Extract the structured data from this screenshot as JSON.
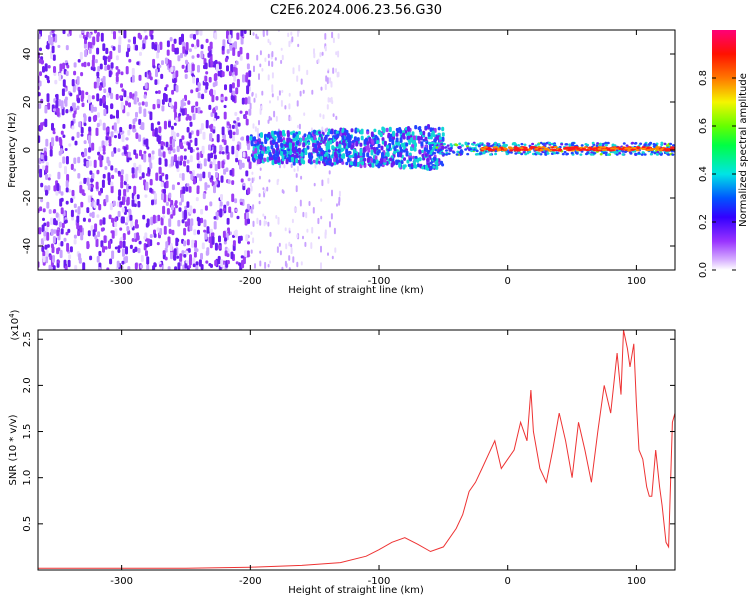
{
  "title": "C2E6.2024.006.23.56.G30",
  "chart_data": [
    {
      "type": "heatmap",
      "xlabel": "Height of straight line (km)",
      "ylabel": "Frequency (Hz)",
      "xlim": [
        -365,
        130
      ],
      "ylim": [
        -50,
        50
      ],
      "xticks": [
        "-300",
        "-200",
        "-100",
        "0",
        "100"
      ],
      "yticks": [
        "40",
        "20",
        "0",
        "-20",
        "-40"
      ],
      "colorbar": {
        "label": "Normalized spectral amplitude",
        "range": [
          0.0,
          1.0
        ],
        "ticks": [
          "0.0",
          "0.2",
          "0.4",
          "0.6",
          "0.8"
        ]
      },
      "regions": [
        {
          "x_from": -365,
          "x_to": -200,
          "description": "broadband noise, amplitude ~0.1-0.3, all frequencies"
        },
        {
          "x_from": -200,
          "x_to": -130,
          "description": "sparse noise, amplitude ~0.05-0.15"
        },
        {
          "x_from": -200,
          "x_to": -50,
          "description": "band centred near 0 Hz, width ~±10 Hz, amplitude ~0.2-0.5"
        },
        {
          "x_from": -50,
          "x_to": 130,
          "description": "narrow band at 0 Hz, amplitude ~0.6-1.0"
        }
      ]
    },
    {
      "type": "line",
      "xlabel": "Height of straight line (km)",
      "ylabel": "SNR (10 * v/v)",
      "ymultiplier": "(x10",
      "ymultiplier_exp": "4",
      "ymultiplier_close": ")",
      "xlim": [
        -365,
        130
      ],
      "ylim": [
        0,
        2.6
      ],
      "xticks": [
        "-300",
        "-200",
        "-100",
        "0",
        "100"
      ],
      "yticks": [
        "0.5",
        "1.0",
        "1.5",
        "2.0",
        "2.5"
      ],
      "series": [
        {
          "color": "#ee3333",
          "x": [
            -365,
            -300,
            -250,
            -200,
            -160,
            -130,
            -110,
            -100,
            -90,
            -80,
            -70,
            -60,
            -50,
            -40,
            -35,
            -30,
            -25,
            -20,
            -15,
            -10,
            -5,
            0,
            5,
            10,
            15,
            18,
            20,
            25,
            30,
            35,
            40,
            45,
            50,
            55,
            60,
            65,
            70,
            75,
            80,
            85,
            88,
            90,
            93,
            95,
            98,
            100,
            102,
            105,
            108,
            110,
            112,
            115,
            118,
            120,
            123,
            125,
            128,
            130
          ],
          "values": [
            0.02,
            0.02,
            0.02,
            0.03,
            0.05,
            0.08,
            0.15,
            0.22,
            0.3,
            0.35,
            0.28,
            0.2,
            0.25,
            0.45,
            0.6,
            0.85,
            0.95,
            1.1,
            1.25,
            1.4,
            1.1,
            1.2,
            1.3,
            1.6,
            1.4,
            1.95,
            1.5,
            1.1,
            0.95,
            1.3,
            1.7,
            1.4,
            1.0,
            1.6,
            1.3,
            0.95,
            1.5,
            2.0,
            1.7,
            2.35,
            1.9,
            2.6,
            2.4,
            2.2,
            2.45,
            1.8,
            1.3,
            1.2,
            0.9,
            0.8,
            0.8,
            1.3,
            0.9,
            0.7,
            0.3,
            0.25,
            1.6,
            1.7
          ]
        }
      ]
    }
  ]
}
